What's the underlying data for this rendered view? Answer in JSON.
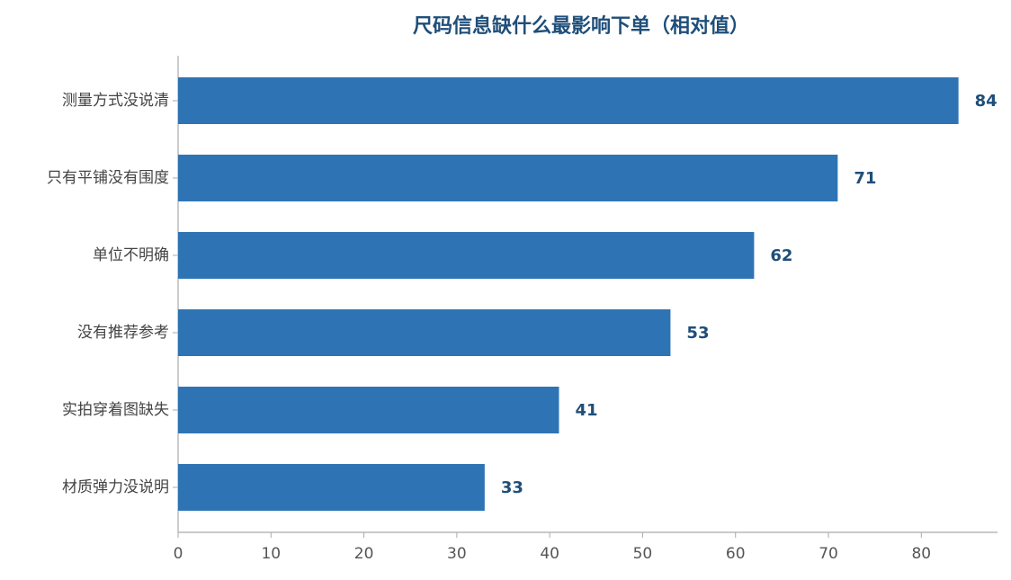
{
  "chart_data": {
    "type": "bar",
    "orientation": "horizontal",
    "title": "尺码信息缺什么最影响下单（相对值）",
    "categories": [
      "测量方式没说清",
      "只有平铺没有围度",
      "单位不明确",
      "没有推荐参考",
      "实拍穿着图缺失",
      "材质弹力没说明"
    ],
    "values": [
      84,
      71,
      62,
      53,
      41,
      33
    ],
    "color": "#2e74b5",
    "xlim": [
      0,
      88.2
    ],
    "xticks": [
      0,
      10,
      20,
      30,
      40,
      50,
      60,
      70,
      80
    ],
    "grid": false
  }
}
